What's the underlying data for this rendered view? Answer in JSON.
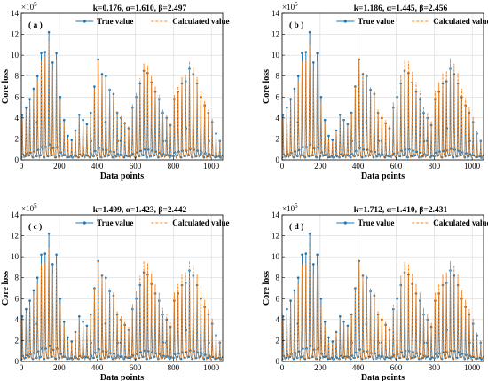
{
  "figure": {
    "colors": {
      "true": "#1f77b4",
      "calc": "#ff7f0e",
      "grid": "#d9d9d9"
    }
  },
  "chart_data": [
    {
      "type": "line",
      "panel_label": "( a )",
      "title": "k=0.176, α=1.610, β=2.497",
      "xlabel": "Data points",
      "ylabel": "Core loss",
      "y_exponent": "×10",
      "y_exponent_power": "5",
      "xlim": [
        0,
        1060
      ],
      "ylim": [
        0,
        14
      ],
      "xticks": [
        0,
        200,
        400,
        600,
        800,
        1000
      ],
      "yticks": [
        0,
        2,
        4,
        6,
        8,
        10,
        12,
        14
      ],
      "grid": true,
      "legend_position": "top-right",
      "peaks_x": [
        5,
        25,
        45,
        65,
        85,
        105,
        125,
        145,
        165,
        185,
        205,
        225,
        245,
        265,
        285,
        305,
        325,
        345,
        365,
        385,
        405,
        425,
        445,
        465,
        485,
        505,
        525,
        545,
        565,
        585,
        605,
        625,
        645,
        665,
        685,
        705,
        725,
        745,
        765,
        785,
        805,
        825,
        845,
        865,
        885,
        905,
        925,
        945,
        965,
        985,
        1005,
        1025,
        1045
      ],
      "series": [
        {
          "name": "True value",
          "style": "solid-marker",
          "peaks": [
            4.3,
            5.0,
            5.8,
            6.8,
            8.0,
            10.2,
            10.3,
            12.2,
            9.3,
            10.2,
            6.0,
            3.8,
            2.3,
            1.9,
            2.8,
            4.3,
            3.8,
            3.4,
            4.5,
            7.0,
            9.6,
            8.2,
            8.0,
            6.7,
            6.3,
            4.5,
            4.0,
            3.5,
            3.0,
            5.0,
            6.0,
            7.3,
            8.5,
            8.3,
            7.4,
            6.5,
            5.8,
            4.5,
            4.0,
            3.3,
            5.8,
            6.5,
            7.3,
            7.5,
            8.7,
            8.2,
            7.3,
            6.0,
            5.2,
            4.5,
            3.6,
            2.5,
            1.8
          ]
        },
        {
          "name": "Calculated value",
          "style": "dashed",
          "peaks": [
            4.0,
            4.8,
            5.6,
            6.5,
            7.6,
            9.5,
            9.8,
            11.3,
            8.6,
            9.6,
            5.6,
            3.6,
            2.1,
            1.8,
            2.7,
            4.1,
            3.7,
            3.3,
            4.4,
            6.8,
            9.5,
            8.1,
            8.0,
            6.8,
            6.4,
            4.7,
            4.2,
            3.7,
            3.2,
            5.3,
            6.4,
            7.8,
            9.2,
            9.0,
            8.0,
            7.0,
            6.2,
            4.8,
            4.3,
            3.5,
            6.2,
            7.0,
            7.9,
            8.1,
            9.4,
            8.8,
            7.9,
            6.5,
            5.6,
            4.8,
            3.9,
            2.7,
            1.9
          ]
        }
      ]
    },
    {
      "type": "line",
      "panel_label": "( b )",
      "title": "k=1.186, α=1.445, β=2.456",
      "xlabel": "Data points",
      "ylabel": "Core loss",
      "y_exponent": "×10",
      "y_exponent_power": "5",
      "xlim": [
        0,
        1060
      ],
      "ylim": [
        0,
        14
      ],
      "xticks": [
        0,
        200,
        400,
        600,
        800,
        1000
      ],
      "yticks": [
        0,
        2,
        4,
        6,
        8,
        10,
        12,
        14
      ],
      "grid": true,
      "legend_position": "top-right",
      "peaks_x": [
        5,
        25,
        45,
        65,
        85,
        105,
        125,
        145,
        165,
        185,
        205,
        225,
        245,
        265,
        285,
        305,
        325,
        345,
        365,
        385,
        405,
        425,
        445,
        465,
        485,
        505,
        525,
        545,
        565,
        585,
        605,
        625,
        645,
        665,
        685,
        705,
        725,
        745,
        765,
        785,
        805,
        825,
        845,
        865,
        885,
        905,
        925,
        945,
        965,
        985,
        1005,
        1025,
        1045
      ],
      "series": [
        {
          "name": "True value",
          "style": "solid-marker",
          "peaks": [
            4.3,
            5.0,
            5.8,
            6.8,
            8.0,
            10.2,
            10.3,
            12.2,
            9.3,
            10.2,
            6.0,
            3.8,
            2.3,
            1.9,
            2.8,
            4.3,
            3.8,
            3.4,
            4.5,
            7.0,
            9.6,
            8.2,
            8.0,
            6.7,
            6.3,
            4.5,
            4.0,
            3.5,
            3.0,
            5.0,
            6.0,
            7.3,
            8.5,
            8.3,
            7.4,
            6.5,
            5.8,
            4.5,
            4.0,
            3.3,
            5.8,
            6.5,
            7.3,
            7.5,
            8.7,
            8.2,
            7.3,
            6.0,
            5.2,
            4.5,
            3.6,
            2.5,
            1.8
          ]
        },
        {
          "name": "Calculated value",
          "style": "dashed",
          "peaks": [
            4.0,
            4.7,
            5.5,
            6.4,
            7.5,
            9.4,
            9.6,
            11.0,
            8.5,
            9.4,
            5.5,
            3.5,
            2.1,
            1.8,
            2.8,
            4.2,
            3.8,
            3.4,
            4.5,
            7.0,
            9.7,
            8.3,
            8.2,
            7.0,
            6.6,
            4.8,
            4.3,
            3.8,
            3.3,
            5.5,
            6.6,
            8.1,
            9.6,
            9.4,
            8.4,
            7.4,
            6.6,
            5.1,
            4.5,
            3.7,
            6.6,
            7.4,
            8.3,
            8.5,
            9.7,
            9.2,
            8.3,
            6.8,
            5.9,
            5.0,
            4.1,
            2.8,
            2.0
          ]
        }
      ]
    },
    {
      "type": "line",
      "panel_label": "( c )",
      "title": "k=1.499, α=1.423, β=2.442",
      "xlabel": "Data points",
      "ylabel": "Core loss",
      "y_exponent": "×10",
      "y_exponent_power": "5",
      "xlim": [
        0,
        1060
      ],
      "ylim": [
        0,
        14
      ],
      "xticks": [
        0,
        200,
        400,
        600,
        800,
        1000
      ],
      "yticks": [
        0,
        2,
        4,
        6,
        8,
        10,
        12,
        14
      ],
      "grid": true,
      "legend_position": "top-right",
      "peaks_x": [
        5,
        25,
        45,
        65,
        85,
        105,
        125,
        145,
        165,
        185,
        205,
        225,
        245,
        265,
        285,
        305,
        325,
        345,
        365,
        385,
        405,
        425,
        445,
        465,
        485,
        505,
        525,
        545,
        565,
        585,
        605,
        625,
        645,
        665,
        685,
        705,
        725,
        745,
        765,
        785,
        805,
        825,
        845,
        865,
        885,
        905,
        925,
        945,
        965,
        985,
        1005,
        1025,
        1045
      ],
      "series": [
        {
          "name": "True value",
          "style": "solid-marker",
          "peaks": [
            4.3,
            5.0,
            5.8,
            6.8,
            8.0,
            10.2,
            10.3,
            12.2,
            9.3,
            10.2,
            6.0,
            3.8,
            2.3,
            1.9,
            2.8,
            4.3,
            3.8,
            3.4,
            4.5,
            7.0,
            9.6,
            8.2,
            8.0,
            6.7,
            6.3,
            4.5,
            4.0,
            3.5,
            3.0,
            5.0,
            6.0,
            7.3,
            8.5,
            8.3,
            7.4,
            6.5,
            5.8,
            4.5,
            4.0,
            3.3,
            5.8,
            6.5,
            7.3,
            7.5,
            8.7,
            8.2,
            7.3,
            6.0,
            5.2,
            4.5,
            3.6,
            2.5,
            1.8
          ]
        },
        {
          "name": "Calculated value",
          "style": "dashed",
          "peaks": [
            4.0,
            4.7,
            5.5,
            6.4,
            7.4,
            9.3,
            9.5,
            10.9,
            8.4,
            9.3,
            5.5,
            3.5,
            2.1,
            1.8,
            2.8,
            4.2,
            3.8,
            3.4,
            4.5,
            7.0,
            9.7,
            8.3,
            8.2,
            7.0,
            6.6,
            4.8,
            4.3,
            3.8,
            3.3,
            5.5,
            6.7,
            8.2,
            9.6,
            9.4,
            8.4,
            7.4,
            6.6,
            5.1,
            4.5,
            3.7,
            6.6,
            7.4,
            8.3,
            8.5,
            9.6,
            9.2,
            8.3,
            6.8,
            5.9,
            5.0,
            4.1,
            2.8,
            2.0
          ]
        }
      ]
    },
    {
      "type": "line",
      "panel_label": "( d )",
      "title": "k=1.712, α=1.410, β=2.431",
      "xlabel": "Data points",
      "ylabel": "Core loss",
      "y_exponent": "×10",
      "y_exponent_power": "5",
      "xlim": [
        0,
        1060
      ],
      "ylim": [
        0,
        14
      ],
      "xticks": [
        0,
        200,
        400,
        600,
        800,
        1000
      ],
      "yticks": [
        0,
        2,
        4,
        6,
        8,
        10,
        12,
        14
      ],
      "grid": true,
      "legend_position": "top-right",
      "peaks_x": [
        5,
        25,
        45,
        65,
        85,
        105,
        125,
        145,
        165,
        185,
        205,
        225,
        245,
        265,
        285,
        305,
        325,
        345,
        365,
        385,
        405,
        425,
        445,
        465,
        485,
        505,
        525,
        545,
        565,
        585,
        605,
        625,
        645,
        665,
        685,
        705,
        725,
        745,
        765,
        785,
        805,
        825,
        845,
        865,
        885,
        905,
        925,
        945,
        965,
        985,
        1005,
        1025,
        1045
      ],
      "series": [
        {
          "name": "True value",
          "style": "solid-marker",
          "peaks": [
            4.3,
            5.0,
            5.8,
            6.8,
            8.0,
            10.2,
            10.3,
            12.2,
            9.3,
            10.2,
            6.0,
            3.8,
            2.3,
            1.9,
            2.8,
            4.3,
            3.8,
            3.4,
            4.5,
            7.0,
            9.6,
            8.2,
            8.0,
            6.7,
            6.3,
            4.5,
            4.0,
            3.5,
            3.0,
            5.0,
            6.0,
            7.3,
            8.5,
            8.3,
            7.4,
            6.5,
            5.8,
            4.5,
            4.0,
            3.3,
            5.8,
            6.5,
            7.3,
            7.5,
            8.7,
            8.2,
            7.3,
            6.0,
            5.2,
            4.5,
            3.6,
            2.5,
            1.8
          ]
        },
        {
          "name": "Calculated value",
          "style": "dashed",
          "peaks": [
            4.0,
            4.6,
            5.4,
            6.4,
            7.4,
            9.3,
            9.4,
            10.9,
            8.3,
            9.2,
            5.4,
            3.5,
            2.1,
            1.8,
            2.8,
            4.2,
            3.8,
            3.4,
            4.5,
            7.0,
            9.6,
            8.3,
            8.2,
            7.0,
            6.6,
            4.8,
            4.3,
            3.8,
            3.3,
            5.5,
            6.7,
            8.2,
            9.5,
            9.3,
            8.4,
            7.4,
            6.6,
            5.1,
            4.5,
            3.7,
            6.6,
            7.4,
            8.3,
            8.5,
            9.6,
            9.2,
            8.3,
            6.8,
            5.9,
            5.0,
            4.1,
            2.8,
            2.0
          ]
        }
      ]
    }
  ]
}
